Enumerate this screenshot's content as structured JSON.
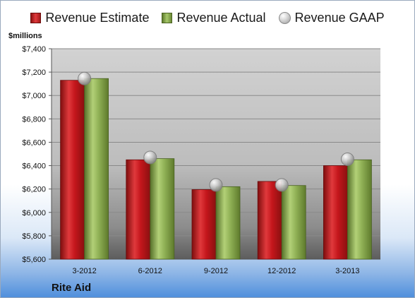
{
  "legend": {
    "estimate": "Revenue Estimate",
    "actual": "Revenue Actual",
    "gaap": "Revenue GAAP"
  },
  "units_label": "$millions",
  "company": "Rite Aid",
  "colors": {
    "estimate": "#c4161c",
    "actual": "#8fb055",
    "gaap": "#bfbfbf"
  },
  "chart_data": {
    "type": "bar",
    "categories": [
      "3-2012",
      "6-2012",
      "9-2012",
      "12-2012",
      "3-2013"
    ],
    "series": [
      {
        "name": "Revenue Estimate",
        "values": [
          7130,
          6450,
          6195,
          6265,
          6400
        ]
      },
      {
        "name": "Revenue Actual",
        "values": [
          7145,
          6460,
          6220,
          6230,
          6450
        ]
      },
      {
        "name": "Revenue GAAP",
        "values": [
          7145,
          6470,
          6235,
          6235,
          6455
        ]
      }
    ],
    "ylabel": "$millions",
    "ylim": [
      5600,
      7400
    ],
    "yticks": [
      "$5,600",
      "$5,800",
      "$6,000",
      "$6,200",
      "$6,400",
      "$6,600",
      "$6,800",
      "$7,000",
      "$7,200",
      "$7,400"
    ],
    "ytick_values": [
      5600,
      5800,
      6000,
      6200,
      6400,
      6600,
      6800,
      7000,
      7200,
      7400
    ],
    "grid": true,
    "legend_position": "top"
  }
}
